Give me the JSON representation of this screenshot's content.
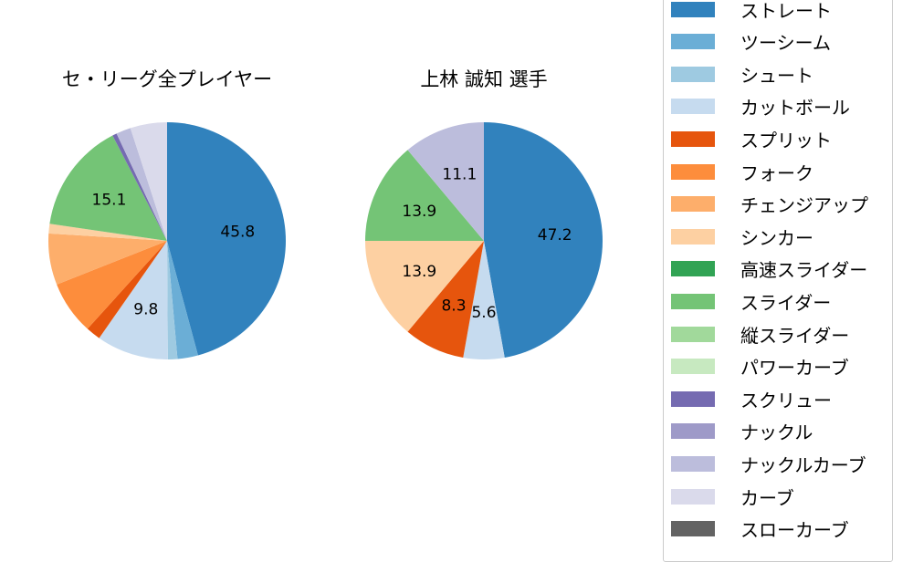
{
  "chart_data": [
    {
      "type": "pie",
      "title": "セ・リーグ全プレイヤー",
      "categories": [
        "ストレート",
        "ツーシーム",
        "シュート",
        "カットボール",
        "スプリット",
        "フォーク",
        "チェンジアップ",
        "シンカー",
        "スライダー",
        "スクリュー",
        "ナックルカーブ",
        "カーブ"
      ],
      "values": [
        45.8,
        2.8,
        1.3,
        9.8,
        2.0,
        7.3,
        7.0,
        1.3,
        15.1,
        0.6,
        2.0,
        5.0
      ],
      "labels_shown": [
        "45.8",
        "9.8",
        "15.1"
      ],
      "colors": [
        "#3182bd",
        "#6baed6",
        "#9ecae1",
        "#c6dbef",
        "#e6550d",
        "#fd8d3c",
        "#fdae6b",
        "#fdd0a2",
        "#74c476",
        "#756bb1",
        "#bcbddc",
        "#dadaeb"
      ]
    },
    {
      "type": "pie",
      "title": "上林 誠知  選手",
      "categories": [
        "ストレート",
        "カットボール",
        "スプリット",
        "シンカー",
        "スライダー",
        "ナックルカーブ"
      ],
      "values": [
        47.2,
        5.6,
        8.3,
        13.9,
        13.9,
        11.1
      ],
      "labels_shown": [
        "47.2",
        "5.6",
        "8.3",
        "13.9",
        "13.9",
        "11.1"
      ],
      "colors": [
        "#3182bd",
        "#c6dbef",
        "#e6550d",
        "#fdd0a2",
        "#74c476",
        "#bcbddc"
      ]
    }
  ],
  "charts": {
    "left": {
      "title": "セ・リーグ全プレイヤー"
    },
    "right": {
      "title": "上林 誠知  選手"
    }
  },
  "legend": {
    "items": [
      {
        "label": "ストレート",
        "color": "#3182bd"
      },
      {
        "label": "ツーシーム",
        "color": "#6baed6"
      },
      {
        "label": "シュート",
        "color": "#9ecae1"
      },
      {
        "label": "カットボール",
        "color": "#c6dbef"
      },
      {
        "label": "スプリット",
        "color": "#e6550d"
      },
      {
        "label": "フォーク",
        "color": "#fd8d3c"
      },
      {
        "label": "チェンジアップ",
        "color": "#fdae6b"
      },
      {
        "label": "シンカー",
        "color": "#fdd0a2"
      },
      {
        "label": "高速スライダー",
        "color": "#31a354"
      },
      {
        "label": "スライダー",
        "color": "#74c476"
      },
      {
        "label": "縦スライダー",
        "color": "#a1d99b"
      },
      {
        "label": "パワーカーブ",
        "color": "#c7e9c0"
      },
      {
        "label": "スクリュー",
        "color": "#756bb1"
      },
      {
        "label": "ナックル",
        "color": "#9e9ac8"
      },
      {
        "label": "ナックルカーブ",
        "color": "#bcbddc"
      },
      {
        "label": "カーブ",
        "color": "#dadaeb"
      },
      {
        "label": "スローカーブ",
        "color": "#636363"
      }
    ]
  }
}
